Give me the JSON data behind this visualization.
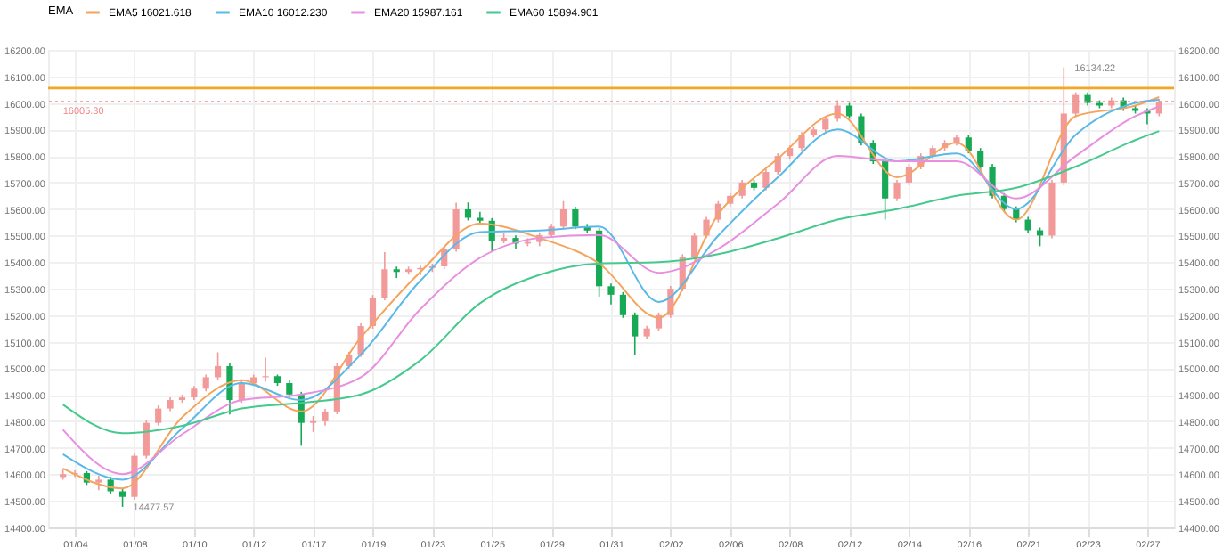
{
  "chart_data": {
    "type": "candlestick",
    "legend_title": "EMA",
    "legend": "top left",
    "grid": true,
    "categories": [
      null,
      "01/04",
      null,
      null,
      null,
      null,
      "01/08",
      null,
      null,
      null,
      null,
      "01/10",
      null,
      null,
      null,
      null,
      "01/12",
      null,
      null,
      null,
      null,
      "01/17",
      null,
      null,
      null,
      null,
      "01/19",
      null,
      null,
      null,
      null,
      "01/23",
      null,
      null,
      null,
      null,
      "01/25",
      null,
      null,
      null,
      null,
      "01/29",
      null,
      null,
      null,
      null,
      "01/31",
      null,
      null,
      null,
      null,
      "02/02",
      null,
      null,
      null,
      null,
      "02/06",
      null,
      null,
      null,
      null,
      "02/08",
      null,
      null,
      null,
      null,
      "02/12",
      null,
      null,
      null,
      null,
      "02/14",
      null,
      null,
      null,
      null,
      "02/16",
      null,
      null,
      null,
      null,
      "02/21",
      null,
      null,
      null,
      null,
      "02/23",
      null,
      null,
      null,
      null,
      "02/27",
      null
    ],
    "ohlc": [
      [
        14590,
        14620,
        14580,
        14601
      ],
      [
        14601,
        14615,
        14590,
        14605
      ],
      [
        14605,
        14612,
        14560,
        14569
      ],
      [
        14569,
        14595,
        14540,
        14580
      ],
      [
        14580,
        14590,
        14525,
        14536
      ],
      [
        14536,
        14545,
        14477.57,
        14515
      ],
      [
        14515,
        14680,
        14505,
        14670
      ],
      [
        14670,
        14805,
        14660,
        14794
      ],
      [
        14794,
        14860,
        14784,
        14848
      ],
      [
        14848,
        14890,
        14838,
        14880
      ],
      [
        14880,
        14900,
        14870,
        14890
      ],
      [
        14890,
        14933,
        14880,
        14923
      ],
      [
        14923,
        14976,
        14913,
        14966
      ],
      [
        14966,
        15060,
        14956,
        15008
      ],
      [
        15008,
        15018,
        14826,
        14880
      ],
      [
        14880,
        14954,
        14870,
        14944
      ],
      [
        14944,
        14976,
        14934,
        14966
      ],
      [
        14966,
        15040,
        14950,
        14970
      ],
      [
        14970,
        14976,
        14934,
        14944
      ],
      [
        14944,
        14954,
        14891,
        14901
      ],
      [
        14901,
        14911,
        14708,
        14794
      ],
      [
        14794,
        14820,
        14760,
        14800
      ],
      [
        14800,
        14847,
        14784,
        14837
      ],
      [
        14837,
        15018,
        14827,
        15008
      ],
      [
        15008,
        15062,
        14998,
        15052
      ],
      [
        15052,
        15169,
        15042,
        15159
      ],
      [
        15159,
        15276,
        15149,
        15266
      ],
      [
        15266,
        15438,
        15256,
        15373
      ],
      [
        15373,
        15383,
        15340,
        15363
      ],
      [
        15363,
        15383,
        15353,
        15373
      ],
      [
        15373,
        15390,
        15350,
        15378
      ],
      [
        15378,
        15394,
        15363,
        15384
      ],
      [
        15384,
        15459,
        15374,
        15449
      ],
      [
        15449,
        15624,
        15439,
        15599
      ],
      [
        15599,
        15625,
        15557,
        15567
      ],
      [
        15567,
        15590,
        15546,
        15556
      ],
      [
        15556,
        15566,
        15440,
        15481
      ],
      [
        15481,
        15510,
        15471,
        15491
      ],
      [
        15491,
        15501,
        15450,
        15470
      ],
      [
        15470,
        15490,
        15460,
        15476
      ],
      [
        15476,
        15512,
        15460,
        15502
      ],
      [
        15502,
        15544,
        15492,
        15534
      ],
      [
        15534,
        15630,
        15524,
        15599
      ],
      [
        15599,
        15609,
        15524,
        15534
      ],
      [
        15534,
        15544,
        15509,
        15519
      ],
      [
        15519,
        15529,
        15270,
        15309
      ],
      [
        15309,
        15319,
        15240,
        15277
      ],
      [
        15277,
        15287,
        15190,
        15200
      ],
      [
        15200,
        15210,
        15050,
        15120
      ],
      [
        15120,
        15160,
        15110,
        15150
      ],
      [
        15150,
        15210,
        15140,
        15200
      ],
      [
        15200,
        15310,
        15190,
        15300
      ],
      [
        15300,
        15430,
        15290,
        15420
      ],
      [
        15420,
        15510,
        15410,
        15500
      ],
      [
        15500,
        15570,
        15490,
        15560
      ],
      [
        15560,
        15630,
        15550,
        15620
      ],
      [
        15620,
        15660,
        15610,
        15650
      ],
      [
        15650,
        15710,
        15640,
        15700
      ],
      [
        15700,
        15710,
        15670,
        15680
      ],
      [
        15680,
        15750,
        15670,
        15740
      ],
      [
        15740,
        15810,
        15730,
        15800
      ],
      [
        15800,
        15840,
        15790,
        15830
      ],
      [
        15830,
        15890,
        15820,
        15880
      ],
      [
        15880,
        15910,
        15870,
        15900
      ],
      [
        15900,
        15950,
        15890,
        15940
      ],
      [
        15940,
        16010,
        15930,
        15990
      ],
      [
        15990,
        16000,
        15940,
        15950
      ],
      [
        15950,
        15960,
        15840,
        15850
      ],
      [
        15850,
        15860,
        15770,
        15780
      ],
      [
        15780,
        15790,
        15560,
        15640
      ],
      [
        15640,
        15710,
        15630,
        15700
      ],
      [
        15700,
        15770,
        15690,
        15760
      ],
      [
        15760,
        15810,
        15750,
        15800
      ],
      [
        15800,
        15840,
        15790,
        15830
      ],
      [
        15830,
        15860,
        15820,
        15850
      ],
      [
        15850,
        15880,
        15840,
        15870
      ],
      [
        15870,
        15880,
        15810,
        15820
      ],
      [
        15820,
        15830,
        15750,
        15760
      ],
      [
        15760,
        15770,
        15640,
        15650
      ],
      [
        15650,
        15660,
        15590,
        15600
      ],
      [
        15600,
        15610,
        15550,
        15560
      ],
      [
        15560,
        15570,
        15510,
        15520
      ],
      [
        15520,
        15530,
        15460,
        15500
      ],
      [
        15500,
        15710,
        15490,
        15700
      ],
      [
        15700,
        16134.22,
        15690,
        15960
      ],
      [
        15960,
        16040,
        15950,
        16030
      ],
      [
        16030,
        16040,
        15990,
        16000
      ],
      [
        16000,
        16010,
        15980,
        15990
      ],
      [
        15990,
        16020,
        15980,
        16010
      ],
      [
        16010,
        16020,
        15970,
        15980
      ],
      [
        15980,
        15990,
        15960,
        15970
      ],
      [
        15970,
        15980,
        15920,
        15960
      ],
      [
        15960,
        16015,
        15950,
        16005.3
      ]
    ],
    "series": [
      {
        "name": "EMA5 16021.618",
        "type": "line",
        "color": "#f5a45d",
        "values": [
          14622,
          null,
          null,
          null,
          null,
          14547,
          null,
          null,
          null,
          null,
          14815,
          null,
          null,
          null,
          null,
          14955,
          null,
          null,
          null,
          null,
          14837,
          null,
          null,
          null,
          null,
          15116,
          null,
          null,
          null,
          null,
          15363,
          null,
          null,
          null,
          null,
          15545,
          null,
          null,
          null,
          null,
          15491,
          null,
          null,
          null,
          null,
          15395,
          null,
          null,
          null,
          null,
          15190,
          null,
          null,
          null,
          null,
          15580,
          null,
          null,
          null,
          null,
          15790,
          null,
          null,
          null,
          null,
          15960,
          null,
          null,
          null,
          null,
          15720,
          null,
          null,
          null,
          null,
          15850,
          null,
          null,
          null,
          null,
          15560,
          null,
          null,
          null,
          null,
          15950,
          null,
          null,
          null,
          null,
          15990,
          null,
          16022
        ]
      },
      {
        "name": "EMA10 16012.230",
        "type": "line",
        "color": "#5ab9e6",
        "values": [
          14676,
          null,
          null,
          null,
          null,
          14580,
          null,
          null,
          null,
          null,
          14773,
          null,
          null,
          null,
          null,
          14944,
          null,
          null,
          null,
          null,
          14880,
          null,
          null,
          null,
          null,
          15052,
          null,
          null,
          null,
          null,
          15330,
          null,
          null,
          null,
          null,
          15513,
          null,
          null,
          null,
          null,
          15519,
          null,
          null,
          null,
          null,
          15534,
          null,
          null,
          null,
          null,
          15250,
          null,
          null,
          null,
          null,
          15500,
          null,
          null,
          null,
          null,
          15720,
          null,
          null,
          null,
          null,
          15900,
          null,
          null,
          null,
          null,
          15780,
          null,
          null,
          null,
          null,
          15810,
          null,
          null,
          null,
          null,
          15600,
          null,
          null,
          null,
          null,
          15880,
          null,
          null,
          null,
          null,
          16000,
          null,
          16012
        ]
      },
      {
        "name": "EMA20 15987.161",
        "type": "line",
        "color": "#e98fe0",
        "values": [
          14768,
          null,
          null,
          null,
          null,
          14601,
          null,
          null,
          null,
          null,
          14751,
          null,
          null,
          null,
          null,
          14880,
          null,
          null,
          null,
          null,
          14901,
          null,
          null,
          null,
          null,
          14966,
          null,
          null,
          null,
          null,
          15223,
          null,
          null,
          null,
          null,
          15416,
          null,
          null,
          null,
          null,
          15491,
          null,
          null,
          null,
          null,
          15502,
          null,
          null,
          null,
          null,
          15360,
          null,
          null,
          null,
          null,
          15450,
          null,
          null,
          null,
          null,
          15620,
          null,
          null,
          null,
          null,
          15800,
          null,
          null,
          null,
          null,
          15780,
          null,
          null,
          null,
          null,
          15780,
          null,
          null,
          null,
          null,
          15640,
          null,
          null,
          null,
          null,
          15800,
          null,
          null,
          null,
          null,
          15950,
          null,
          15987
        ]
      },
      {
        "name": "EMA60 15894.901",
        "type": "line",
        "color": "#45c98e",
        "values": [
          14863,
          null,
          null,
          null,
          null,
          14755,
          null,
          null,
          null,
          null,
          14783,
          null,
          null,
          null,
          null,
          14848,
          null,
          null,
          null,
          null,
          14869,
          null,
          null,
          null,
          null,
          14901,
          null,
          null,
          null,
          null,
          15030,
          null,
          null,
          null,
          null,
          15245,
          null,
          null,
          null,
          null,
          15352,
          null,
          null,
          null,
          null,
          15395,
          null,
          null,
          null,
          null,
          15400,
          null,
          null,
          null,
          null,
          15430,
          null,
          null,
          null,
          null,
          15490,
          null,
          null,
          null,
          null,
          15560,
          null,
          null,
          null,
          null,
          15600,
          null,
          null,
          null,
          null,
          15650,
          null,
          null,
          null,
          null,
          15680,
          null,
          null,
          null,
          null,
          15760,
          null,
          null,
          null,
          null,
          15860,
          null,
          15894
        ]
      }
    ],
    "ylim": [
      14400,
      16200
    ],
    "yticks": [
      {
        "value": 14400,
        "label": "14400.00"
      },
      {
        "value": 14500,
        "label": "14500.00"
      },
      {
        "value": 14600,
        "label": "14600.00"
      },
      {
        "value": 14700,
        "label": "14700.00"
      },
      {
        "value": 14800,
        "label": "14800.00"
      },
      {
        "value": 14900,
        "label": "14900.00"
      },
      {
        "value": 15000,
        "label": "15000.00"
      },
      {
        "value": 15100,
        "label": "15100.00"
      },
      {
        "value": 15200,
        "label": "15200.00"
      },
      {
        "value": 15300,
        "label": "15300.00"
      },
      {
        "value": 15400,
        "label": "15400.00"
      },
      {
        "value": 15500,
        "label": "15500.00"
      },
      {
        "value": 15600,
        "label": "15600.00"
      },
      {
        "value": 15700,
        "label": "15700.00"
      },
      {
        "value": 15800,
        "label": "15800.00"
      },
      {
        "value": 15900,
        "label": "15900.00"
      },
      {
        "value": 16000,
        "label": "16000.00"
      },
      {
        "value": 16100,
        "label": "16100.00"
      },
      {
        "value": 16200,
        "label": "16200.00"
      }
    ],
    "y2lim": [
      14400,
      16200
    ],
    "y2ticks": [
      {
        "value": 14400,
        "label": "14400.00"
      },
      {
        "value": 14500,
        "label": "14500.00"
      },
      {
        "value": 14600,
        "label": "14600.00"
      },
      {
        "value": 14700,
        "label": "14700.00"
      },
      {
        "value": 14800,
        "label": "14800.00"
      },
      {
        "value": 14900,
        "label": "14900.00"
      },
      {
        "value": 15000,
        "label": "15000.00"
      },
      {
        "value": 15100,
        "label": "15100.00"
      },
      {
        "value": 15200,
        "label": "15200.00"
      },
      {
        "value": 15300,
        "label": "15300.00"
      },
      {
        "value": 15400,
        "label": "15400.00"
      },
      {
        "value": 15500,
        "label": "15500.00"
      },
      {
        "value": 15600,
        "label": "15600.00"
      },
      {
        "value": 15700,
        "label": "15700.00"
      },
      {
        "value": 15800,
        "label": "15800.00"
      },
      {
        "value": 15900,
        "label": "15900.00"
      },
      {
        "value": 16000,
        "label": "16000.00"
      },
      {
        "value": 16100,
        "label": "16100.00"
      },
      {
        "value": 16200,
        "label": "16200.00"
      }
    ],
    "ref_lines": [
      {
        "axis": "y",
        "value": 16056,
        "label": null,
        "color": "#f5a623",
        "line_style": "solid"
      },
      {
        "axis": "y",
        "value": 16005.3,
        "label": "16005.30",
        "color": "#f08a8a",
        "line_style": "dotted"
      }
    ],
    "annotations": [
      "16134.22",
      "14477.57"
    ]
  }
}
